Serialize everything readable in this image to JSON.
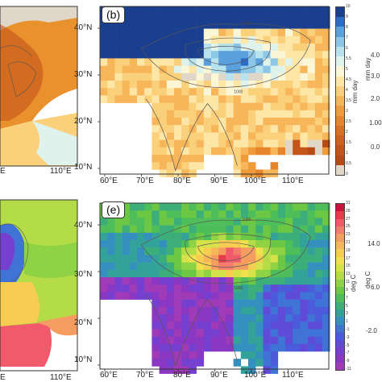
{
  "panel_b": {
    "label": "(b)",
    "colorbar_title": "mm day",
    "colorbar_ticks": [
      "10",
      "9",
      "8",
      "7",
      "6",
      "5.5",
      "5",
      "4.5",
      "4",
      "3.5",
      "3",
      "2.5",
      "2",
      "1.5",
      "1",
      "0.5",
      "0"
    ],
    "colors": [
      "#1a3f8f",
      "#2d6bc8",
      "#5aa0dd",
      "#8cc7e8",
      "#b9e3ec",
      "#dff2ec",
      "#fbf7d6",
      "#fde6a6",
      "#fbd07a",
      "#f7b65a",
      "#f09b3a",
      "#e7852a",
      "#dc7021",
      "#d0601c",
      "#c45418",
      "#b84a14",
      "#e0d7c8"
    ],
    "lat_labels": [
      "40°N",
      "30°N",
      "20°N",
      "10°N"
    ],
    "lon_labels": [
      "60°E",
      "70°E",
      "80°E",
      "90°E",
      "100°E",
      "110°E"
    ]
  },
  "panel_e": {
    "label": "(e)",
    "colorbar_title": "deg C",
    "colorbar_ticks": [
      "31",
      "29",
      "27",
      "25",
      "23",
      "21",
      "19",
      "17",
      "15",
      "13",
      "11",
      "9",
      "7",
      "5",
      "3",
      "1",
      "-1",
      "-3",
      "-5",
      "-7",
      "-9",
      "-11"
    ],
    "colors": [
      "#c8143c",
      "#e43c4b",
      "#f05a6a",
      "#f37c6c",
      "#f59d60",
      "#f7b657",
      "#f7cd51",
      "#efe04c",
      "#d5e24a",
      "#b4dc47",
      "#8fd244",
      "#6cc844",
      "#4dbe5a",
      "#3cae7a",
      "#33a39a",
      "#3590c0",
      "#3f74d6",
      "#4b5bdc",
      "#5f4bd8",
      "#7540cf",
      "#8a38c3",
      "#a03ab7"
    ],
    "lat_labels": [
      "40°N",
      "30°N",
      "20°N",
      "10°N"
    ],
    "lon_labels": [
      "60°E",
      "70°E",
      "80°E",
      "90°E",
      "100°E",
      "110°E"
    ]
  },
  "left_fragments": {
    "top_lon_labels": [
      "110°E"
    ],
    "top_partial_label": "E",
    "bottom_lon_labels": [
      "110°E"
    ],
    "bottom_partial_label": "E"
  },
  "right_fragments": {
    "top_unit": "mm day",
    "top_ticks": [
      "4.0",
      "3.0",
      "2.0",
      "1.00",
      "0.0"
    ],
    "bottom_unit": "deg C",
    "bottom_ticks": [
      "14.0",
      "6.0",
      "-2.0"
    ]
  },
  "contour_labels": [
    "1000",
    "1000",
    "1000",
    "3000"
  ]
}
